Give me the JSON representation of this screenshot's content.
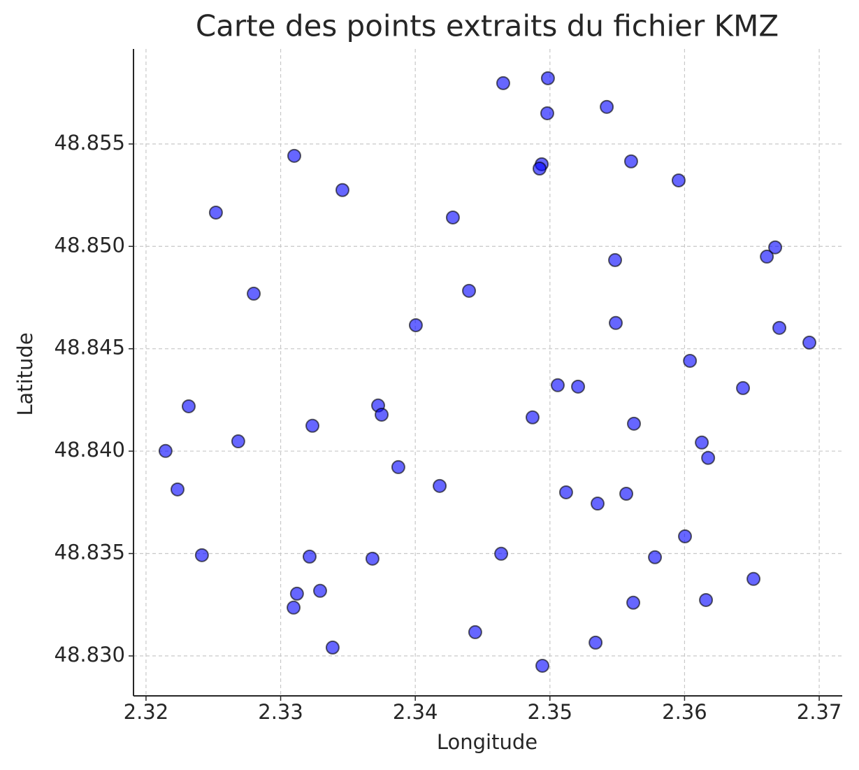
{
  "chart_data": {
    "type": "scatter",
    "title": "Carte des points extraits du fichier KMZ",
    "x_label": "Longitude",
    "y_label": "Latitude",
    "color": "#0000ff",
    "x": [
      2.34653,
      2.34985,
      2.3498,
      2.35422,
      2.33101,
      2.34939,
      2.34923,
      2.35603,
      2.35956,
      2.33459,
      2.32519,
      2.34279,
      2.36673,
      2.36611,
      2.35484,
      2.328,
      2.34399,
      2.34004,
      2.35489,
      2.36704,
      2.36927,
      2.3604,
      2.35058,
      2.35209,
      2.36434,
      2.32317,
      2.33724,
      2.3375,
      2.34871,
      2.33236,
      2.35624,
      2.32685,
      2.32145,
      2.36128,
      2.36175,
      2.33874,
      2.34181,
      2.32234,
      2.3512,
      2.35567,
      2.35354,
      2.36003,
      2.32415,
      2.33215,
      2.33682,
      2.34638,
      2.3578,
      2.36512,
      2.33121,
      2.33293,
      2.33096,
      2.35619,
      2.36159,
      2.34445,
      2.35339,
      2.33386,
      2.34944
    ],
    "values": [
      48.85797,
      48.85821,
      48.8565,
      48.85681,
      48.85442,
      48.85401,
      48.8538,
      48.85415,
      48.85322,
      48.85275,
      48.85165,
      48.85141,
      48.84995,
      48.8495,
      48.84933,
      48.84769,
      48.84783,
      48.84615,
      48.84626,
      48.84602,
      48.8453,
      48.84441,
      48.84322,
      48.84315,
      48.84308,
      48.84219,
      48.84223,
      48.84178,
      48.84165,
      48.84124,
      48.84134,
      48.84048,
      48.84001,
      48.84042,
      48.83967,
      48.83922,
      48.8383,
      48.83813,
      48.83799,
      48.83792,
      48.83744,
      48.83584,
      48.83492,
      48.83485,
      48.83475,
      48.83499,
      48.83482,
      48.83376,
      48.83304,
      48.83318,
      48.83236,
      48.8326,
      48.83273,
      48.83116,
      48.83065,
      48.83041,
      48.82952
    ],
    "xlim": [
      2.31907,
      2.37171
    ],
    "ylim": [
      48.82805,
      48.85964
    ],
    "xticks": [
      2.32,
      2.33,
      2.34,
      2.35,
      2.36,
      2.37
    ],
    "yticks": [
      {
        "value": 48.83,
        "label": "48.830"
      },
      48.835,
      {
        "value": 48.84,
        "label": "48.840"
      },
      48.845,
      {
        "value": 48.85,
        "label": "48.850"
      },
      48.855
    ],
    "grid": true
  }
}
